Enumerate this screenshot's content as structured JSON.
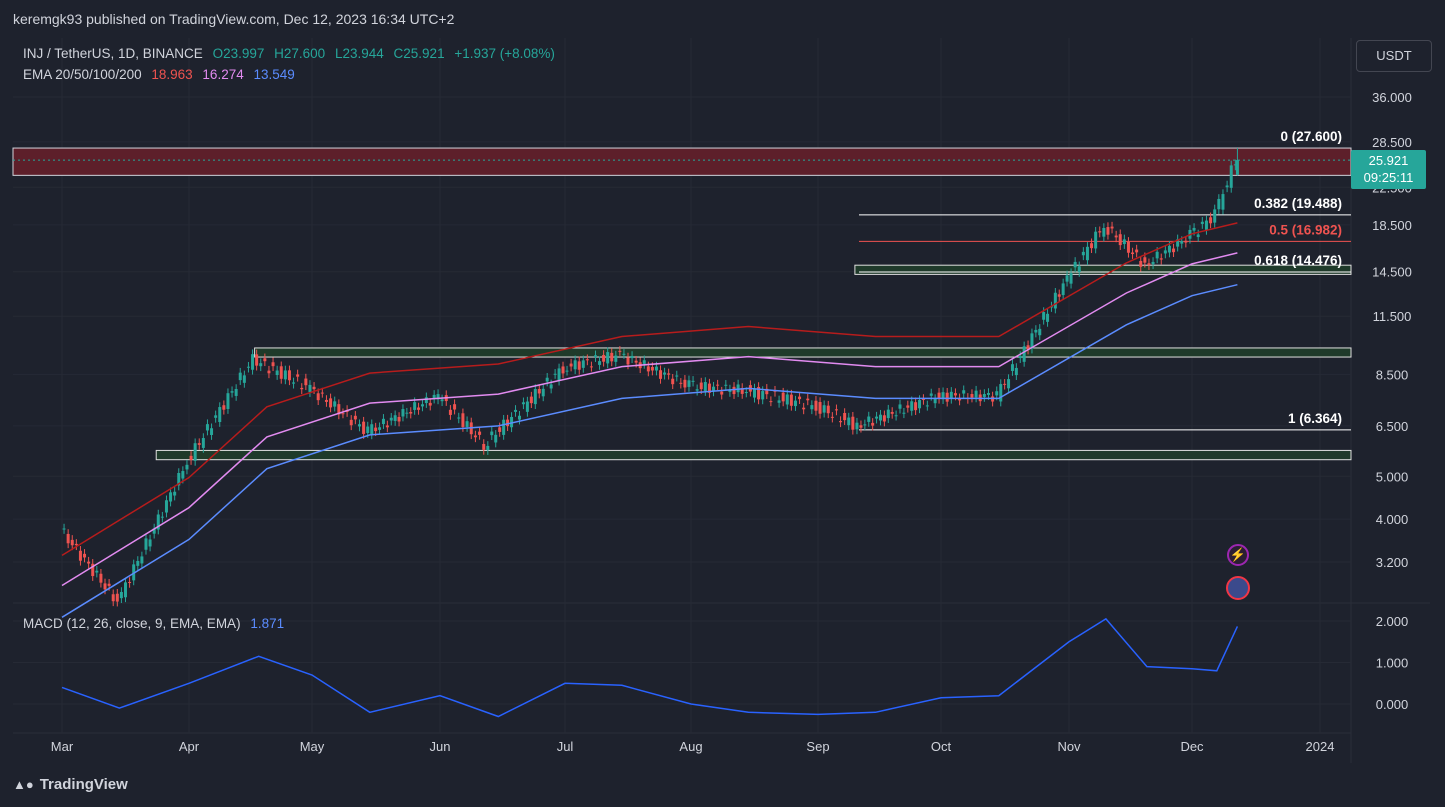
{
  "header": {
    "published": "keremgk93 published on TradingView.com, Dec 12, 2023 16:34 UTC+2"
  },
  "footer": {
    "logo": "TradingView"
  },
  "legend": {
    "symbol": "INJ / TetherUS, 1D, BINANCE",
    "open": "O23.997",
    "high": "H27.600",
    "low": "L23.944",
    "close": "C25.921",
    "change": "+1.937 (+8.08%)",
    "ema_label": "EMA 20/50/100/200",
    "ema20": "18.963",
    "ema50": "16.274",
    "ema100": "13.549",
    "macd_label": "MACD (12, 26, close, 9, EMA, EMA)",
    "macd_value": "1.871"
  },
  "price_axis": {
    "unit_button": "USDT",
    "ticks": [
      "36.000",
      "28.500",
      "22.500",
      "18.500",
      "14.500",
      "11.500",
      "8.500",
      "6.500",
      "5.000",
      "4.000",
      "3.200"
    ],
    "current_price": "25.921",
    "countdown": "09:25:11"
  },
  "macd_axis": {
    "ticks": [
      "2.000",
      "1.000",
      "0.000"
    ]
  },
  "time_axis": {
    "ticks": [
      "Mar",
      "Apr",
      "May",
      "Jun",
      "Jul",
      "Aug",
      "Sep",
      "Oct",
      "Nov",
      "Dec",
      "2024"
    ]
  },
  "fib_levels": [
    {
      "label": "0 (27.600)",
      "value": 27.6,
      "color": "#ffffff"
    },
    {
      "label": "0.382 (19.488)",
      "value": 19.488,
      "color": "#ffffff"
    },
    {
      "label": "0.5 (16.982)",
      "value": 16.982,
      "color": "#ef5350"
    },
    {
      "label": "0.618 (14.476)",
      "value": 14.476,
      "color": "#ffffff"
    },
    {
      "label": "1 (6.364)",
      "value": 6.364,
      "color": "#ffffff"
    }
  ],
  "colors": {
    "background": "#1e222d",
    "up": "#26a69a",
    "down": "#ef5350",
    "ema20": "#b71c1c",
    "ema50": "#e28bf0",
    "ema100": "#5b8cff",
    "macd": "#2962ff",
    "resistance_zone": "#5d1f2a"
  },
  "chart_data": {
    "type": "line",
    "series": [
      {
        "name": "INJ / TetherUS",
        "x": [
          "Mar 1",
          "Mar 15",
          "Apr 1",
          "Apr 17",
          "May 1",
          "May 15",
          "Jun 1",
          "Jun 12",
          "Jul 1",
          "Jul 15",
          "Aug 1",
          "Aug 15",
          "Sep 1",
          "Sep 11",
          "Oct 1",
          "Oct 15",
          "Nov 1",
          "Nov 10",
          "Nov 20",
          "Dec 1",
          "Dec 7",
          "Dec 12"
        ],
        "values": [
          3.8,
          2.6,
          5.4,
          9.2,
          7.9,
          6.3,
          7.6,
          5.9,
          8.8,
          9.4,
          8.0,
          7.8,
          7.2,
          6.5,
          7.6,
          7.6,
          14.0,
          18.5,
          15.0,
          17.5,
          19.5,
          25.921
        ]
      },
      {
        "name": "EMA 20/50/100/200",
        "x": [
          "Mar 1",
          "Apr 1",
          "Apr 20",
          "May 15",
          "Jun 15",
          "Jul 15",
          "Aug 15",
          "Sep 15",
          "Oct 15",
          "Nov 15",
          "Dec 1",
          "Dec 12"
        ],
        "values": [
          2.4,
          3.6,
          5.2,
          6.2,
          6.5,
          7.5,
          7.9,
          7.5,
          7.5,
          11.0,
          12.8,
          13.549
        ]
      },
      {
        "name": "MACD (12, 26, close, 9, EMA, EMA)",
        "x": [
          "Mar 1",
          "Mar 15",
          "Apr 1",
          "Apr 18",
          "May 1",
          "May 15",
          "Jun 1",
          "Jun 15",
          "Jul 1",
          "Jul 15",
          "Aug 1",
          "Aug 15",
          "Sep 1",
          "Sep 15",
          "Oct 1",
          "Oct 15",
          "Nov 1",
          "Nov 10",
          "Nov 20",
          "Dec 1",
          "Dec 7",
          "Dec 12"
        ],
        "values": [
          0.4,
          -0.1,
          0.5,
          1.15,
          0.7,
          -0.2,
          0.2,
          -0.3,
          0.5,
          0.45,
          0.0,
          -0.2,
          -0.25,
          -0.2,
          0.15,
          0.2,
          1.5,
          2.05,
          0.9,
          0.85,
          0.8,
          1.871
        ]
      }
    ],
    "ylim": [
      2.5,
      40
    ],
    "log_scale": true,
    "grid": true,
    "legend": "top-left"
  }
}
